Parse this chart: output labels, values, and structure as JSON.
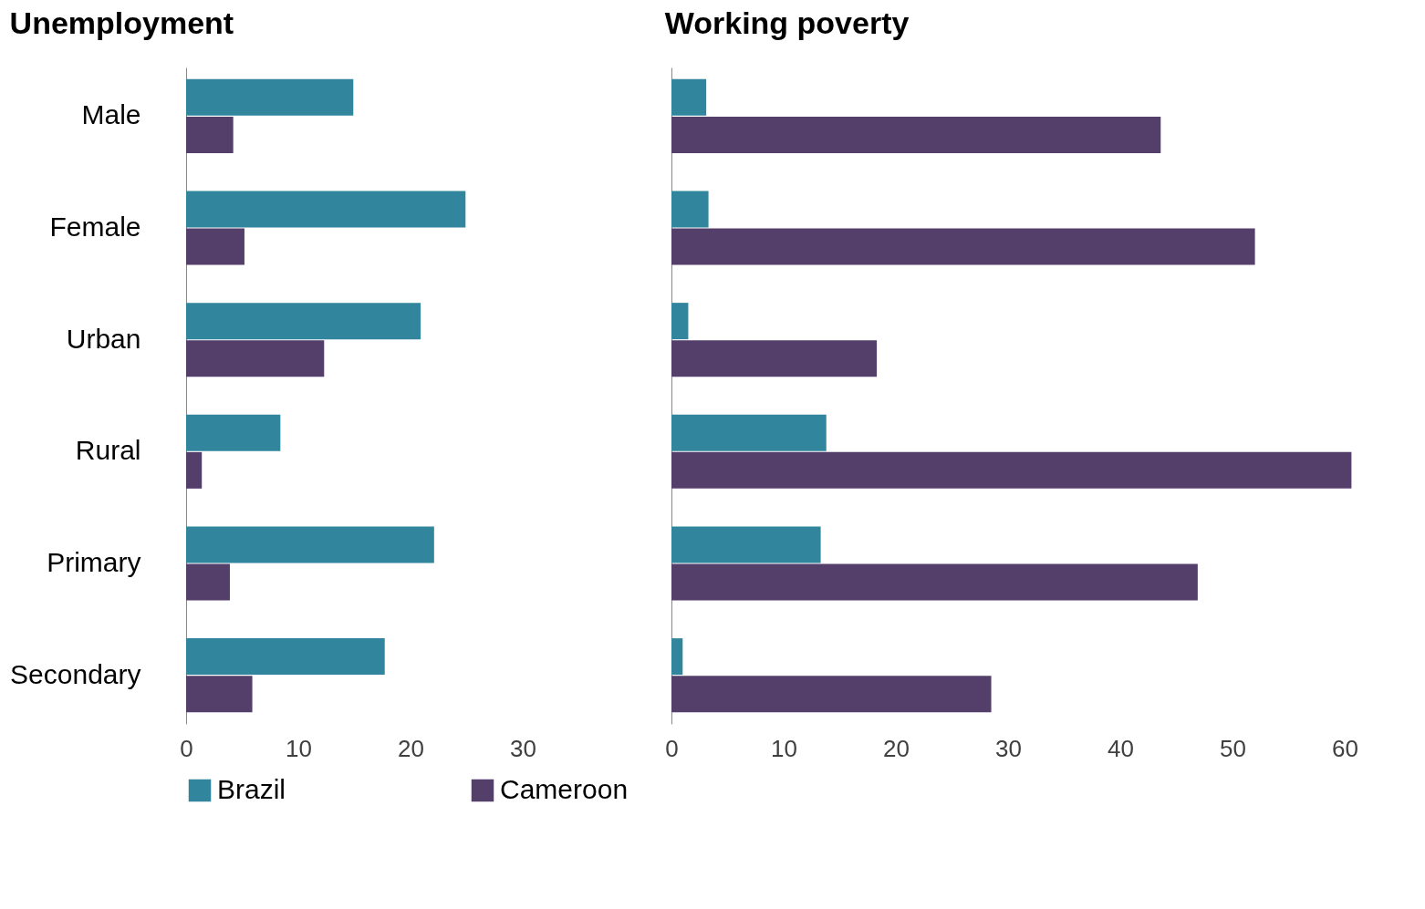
{
  "chart_data": [
    {
      "type": "bar",
      "orientation": "horizontal",
      "title": "Unemployment",
      "categories": [
        "Male",
        "Female",
        "Urban",
        "Rural",
        "Primary",
        "Secondary"
      ],
      "series": [
        {
          "name": "Brazil",
          "color": "#31859c",
          "values": [
            14.9,
            24.9,
            20.9,
            8.4,
            22.1,
            17.7
          ]
        },
        {
          "name": "Cameroon",
          "color": "#543f6b",
          "values": [
            4.2,
            5.2,
            12.3,
            1.4,
            3.9,
            5.9
          ]
        }
      ],
      "xlim": [
        0,
        30
      ],
      "xticks": [
        0,
        10,
        20,
        30
      ],
      "grid": false,
      "legend": "bottom"
    },
    {
      "type": "bar",
      "orientation": "horizontal",
      "title": "Working poverty",
      "categories": [
        "Male",
        "Female",
        "Urban",
        "Rural",
        "Primary",
        "Secondary"
      ],
      "series": [
        {
          "name": "Brazil",
          "color": "#31859c",
          "values": [
            3.1,
            3.3,
            1.5,
            13.8,
            13.3,
            1.0
          ]
        },
        {
          "name": "Cameroon",
          "color": "#543f6b",
          "values": [
            43.6,
            52.0,
            18.3,
            60.6,
            46.9,
            28.5
          ]
        }
      ],
      "xlim": [
        0,
        61
      ],
      "xticks": [
        0,
        10,
        20,
        30,
        40,
        50,
        60
      ],
      "grid": false,
      "legend": "bottom",
      "tick_labels": "x"
    }
  ]
}
